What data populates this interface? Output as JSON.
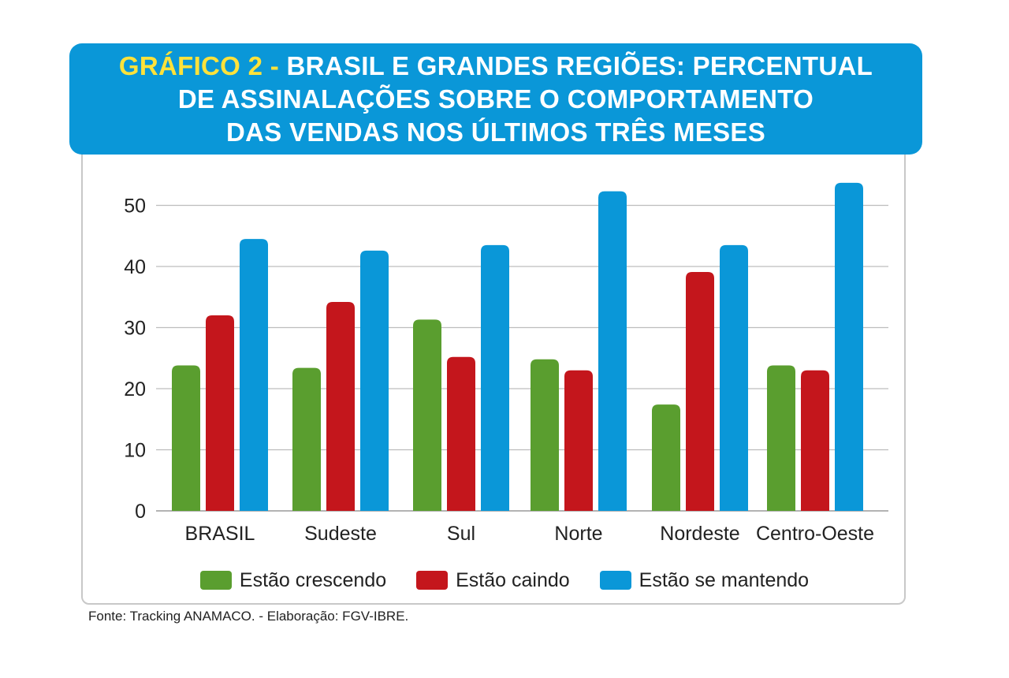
{
  "title": {
    "prefix": "GRÁFICO 2 -",
    "line1": "BRASIL E GRANDES REGIÕES: PERCENTUAL",
    "line2": "DE ASSINALAÇÕES SOBRE O COMPORTAMENTO",
    "line3": "DAS VENDAS NOS ÚLTIMOS TRÊS MESES"
  },
  "source": "Fonte: Tracking ANAMACO. - Elaboração: FGV-IBRE.",
  "colors": {
    "header": "#0a97d8",
    "prefix": "#ffe23a",
    "green": "#5a9e2f",
    "red": "#c4161c",
    "blue": "#0a97d8"
  },
  "chart_data": {
    "type": "bar",
    "title": "GRÁFICO 2 - BRASIL E GRANDES REGIÕES: PERCENTUAL DE ASSINALAÇÕES SOBRE O COMPORTAMENTO DAS VENDAS NOS ÚLTIMOS TRÊS MESES",
    "categories": [
      "BRASIL",
      "Sudeste",
      "Sul",
      "Norte",
      "Nordeste",
      "Centro-Oeste"
    ],
    "series": [
      {
        "name": "Estão crescendo",
        "color": "#5a9e2f",
        "values": [
          23.8,
          23.4,
          31.3,
          24.8,
          17.4,
          23.8
        ]
      },
      {
        "name": "Estão caindo",
        "color": "#c4161c",
        "values": [
          32.0,
          34.2,
          25.2,
          23.0,
          39.1,
          23.0
        ]
      },
      {
        "name": "Estão se mantendo",
        "color": "#0a97d8",
        "values": [
          44.5,
          42.6,
          43.5,
          52.3,
          43.5,
          53.7
        ]
      }
    ],
    "yticks": [
      "0",
      "10",
      "20",
      "30",
      "40",
      "50"
    ],
    "ylim": [
      0,
      55
    ],
    "grid": true,
    "legend": "bottom"
  }
}
